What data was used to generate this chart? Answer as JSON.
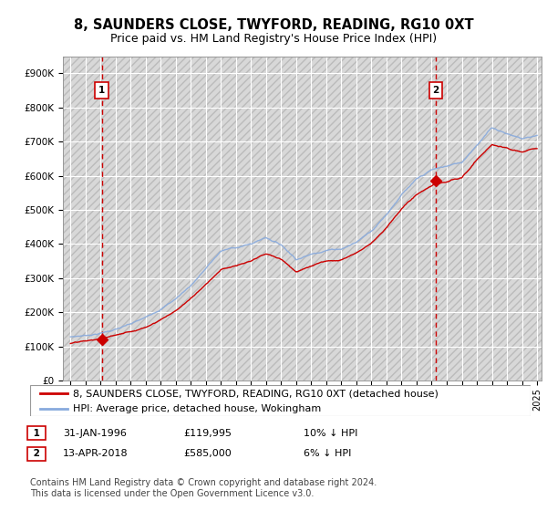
{
  "title": "8, SAUNDERS CLOSE, TWYFORD, READING, RG10 0XT",
  "subtitle": "Price paid vs. HM Land Registry's House Price Index (HPI)",
  "ylim": [
    0,
    950000
  ],
  "yticks": [
    0,
    100000,
    200000,
    300000,
    400000,
    500000,
    600000,
    700000,
    800000,
    900000
  ],
  "ytick_labels": [
    "£0",
    "£100K",
    "£200K",
    "£300K",
    "£400K",
    "£500K",
    "£600K",
    "£700K",
    "£800K",
    "£900K"
  ],
  "x_start_year": 1994,
  "x_end_year": 2025,
  "purchase1_year": 1996.08,
  "purchase1_price": 119995,
  "purchase1_label": "1",
  "purchase1_date": "31-JAN-1996",
  "purchase1_note": "10% ↓ HPI",
  "purchase2_year": 2018.28,
  "purchase2_price": 585000,
  "purchase2_label": "2",
  "purchase2_date": "13-APR-2018",
  "purchase2_note": "6% ↓ HPI",
  "line_color_purchase": "#cc0000",
  "line_color_hpi": "#88aadd",
  "plot_bg": "#e8f0fa",
  "grid_color": "#ffffff",
  "legend_label1": "8, SAUNDERS CLOSE, TWYFORD, READING, RG10 0XT (detached house)",
  "legend_label2": "HPI: Average price, detached house, Wokingham",
  "footer": "Contains HM Land Registry data © Crown copyright and database right 2024.\nThis data is licensed under the Open Government Licence v3.0.",
  "title_fontsize": 10.5,
  "subtitle_fontsize": 9,
  "tick_fontsize": 7.5,
  "legend_fontsize": 8,
  "footer_fontsize": 7
}
